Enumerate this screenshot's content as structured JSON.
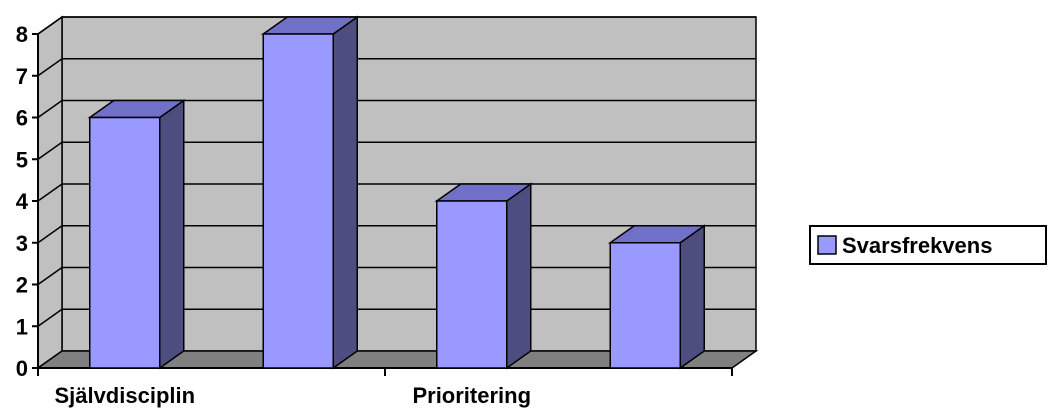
{
  "chart_data": {
    "type": "bar",
    "categories": [
      "Självdisciplin",
      "",
      "Prioritering",
      ""
    ],
    "series": [
      {
        "name": "Svarsfrekvens",
        "values": [
          6,
          8,
          4,
          3
        ]
      }
    ],
    "ylim": [
      0,
      8
    ],
    "yticks": [
      "0",
      "1",
      "2",
      "3",
      "4",
      "5",
      "6",
      "7",
      "8"
    ],
    "grid": true,
    "legend": "right",
    "colors": {
      "bar_front": "#9999ff",
      "bar_side": "#4d4d80",
      "bar_top": "#7070c8",
      "plot_wall": "#c0c0c0",
      "floor": "#808080",
      "edge": "#000000"
    }
  }
}
